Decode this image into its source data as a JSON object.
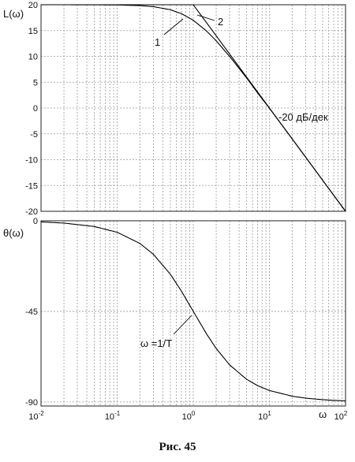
{
  "caption": "Рис. 45",
  "chart_data": [
    {
      "type": "line",
      "ylabel": "L(ω)",
      "xscale": "log",
      "xlim": [
        0.01,
        100
      ],
      "ylim": [
        -20,
        20
      ],
      "yticks": [
        20,
        15,
        10,
        5,
        0,
        -5,
        -10,
        -15,
        -20
      ],
      "grid": true,
      "series": [
        {
          "name": "1",
          "x": [
            0.01,
            0.02,
            0.05,
            0.1,
            0.2,
            0.3,
            0.5,
            0.7,
            1,
            1.5,
            2,
            3,
            5,
            7,
            10,
            20,
            30,
            50,
            70,
            100
          ],
          "y": [
            20,
            20,
            19.99,
            19.96,
            19.83,
            19.63,
            19.03,
            18.27,
            16.99,
            14.89,
            13.01,
            10.0,
            5.85,
            2.92,
            -0.04,
            -6.02,
            -9.54,
            -13.98,
            -16.9,
            -20.0
          ]
        },
        {
          "name": "2",
          "x": [
            0.01,
            1,
            100
          ],
          "y": [
            20,
            20,
            -20
          ]
        }
      ],
      "annotations": [
        {
          "text": "1",
          "x": 0.9,
          "y": 17.5
        },
        {
          "text": "2",
          "x": 1.5,
          "y": 20
        },
        {
          "text": "-20 дБ/дек",
          "x": 12,
          "y": -2
        }
      ]
    },
    {
      "type": "line",
      "ylabel": "θ(ω)",
      "xlabel": "ω",
      "xscale": "log",
      "xlim": [
        0.01,
        100
      ],
      "ylim": [
        -92,
        0
      ],
      "yticks": [
        0,
        -45,
        -90
      ],
      "xticks": [
        "10^-2",
        "10^-1",
        "10^0",
        "10^1",
        "10^2"
      ],
      "grid": true,
      "series": [
        {
          "name": "",
          "x": [
            0.01,
            0.02,
            0.05,
            0.1,
            0.2,
            0.3,
            0.5,
            0.7,
            1,
            1.5,
            2,
            3,
            5,
            7,
            10,
            20,
            30,
            50,
            70,
            100
          ],
          "y": [
            -0.57,
            -1.15,
            -2.86,
            -5.71,
            -11.31,
            -16.7,
            -26.57,
            -34.99,
            -45.0,
            -56.31,
            -63.43,
            -71.57,
            -78.69,
            -81.87,
            -84.29,
            -87.14,
            -88.09,
            -88.85,
            -89.18,
            -89.43
          ]
        }
      ],
      "annotations": [
        {
          "text": "ω =1/T",
          "x": 1,
          "y": -45
        }
      ]
    }
  ]
}
